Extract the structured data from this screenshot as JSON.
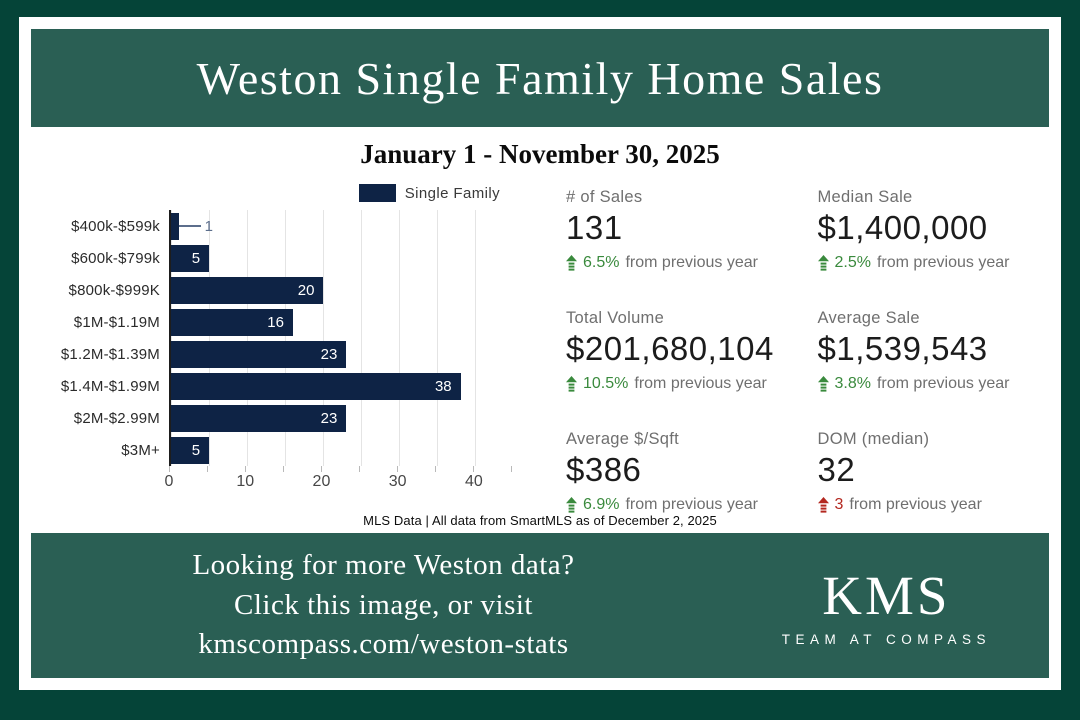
{
  "banner": {
    "title": "Weston Single Family Home Sales"
  },
  "subtitle": "January 1 - November 30, 2025",
  "chart_data": {
    "type": "bar",
    "orientation": "horizontal",
    "title": "",
    "xlabel": "",
    "ylabel": "",
    "legend": [
      "Single Family"
    ],
    "legend_position": "top-right",
    "categories": [
      "$400k-$599k",
      "$600k-$799k",
      "$800k-$999K",
      "$1M-$1.19M",
      "$1.2M-$1.39M",
      "$1.4M-$1.99M",
      "$2M-$2.99M",
      "$3M+"
    ],
    "values": [
      1,
      5,
      20,
      16,
      23,
      38,
      23,
      5
    ],
    "xlim": [
      0,
      45
    ],
    "x_ticks": [
      0,
      10,
      20,
      30,
      40
    ],
    "grid": true,
    "grid_step": 5,
    "bar_color": "#0e2345",
    "callout_threshold": 2
  },
  "stats": [
    {
      "label": "# of Sales",
      "value": "131",
      "change": "6.5%",
      "trend": "up",
      "trend_color": "green",
      "suffix": "from previous year"
    },
    {
      "label": "Median Sale",
      "value": "$1,400,000",
      "change": "2.5%",
      "trend": "up",
      "trend_color": "green",
      "suffix": "from previous year"
    },
    {
      "label": "Total Volume",
      "value": "$201,680,104",
      "change": "10.5%",
      "trend": "up",
      "trend_color": "green",
      "suffix": "from previous year"
    },
    {
      "label": "Average Sale",
      "value": "$1,539,543",
      "change": "3.8%",
      "trend": "up",
      "trend_color": "green",
      "suffix": "from previous year"
    },
    {
      "label": "Average $/Sqft",
      "value": "$386",
      "change": "6.9%",
      "trend": "up",
      "trend_color": "green",
      "suffix": "from previous year"
    },
    {
      "label": "DOM (median)",
      "value": "32",
      "change": "3",
      "trend": "up",
      "trend_color": "red",
      "suffix": "from previous year"
    }
  ],
  "disclaimer": "MLS Data | All data from SmartMLS as of December 2, 2025",
  "footer": {
    "lines": [
      "Looking for more Weston data?",
      "Click this image, or visit",
      "kmscompass.com/weston-stats"
    ],
    "url": "kmscompass.com/weston-stats",
    "logo": {
      "name": "KMS",
      "tagline": "TEAM AT COMPASS"
    }
  },
  "colors": {
    "outer_border_green": "#054438",
    "banner_green": "#2a5f54",
    "bar_navy": "#0e2345",
    "trend_up_green": "#3a8a3d",
    "trend_down_red": "#b3271f",
    "label_gray": "#6f6f6f",
    "gridline_gray": "#e4e4e4"
  }
}
